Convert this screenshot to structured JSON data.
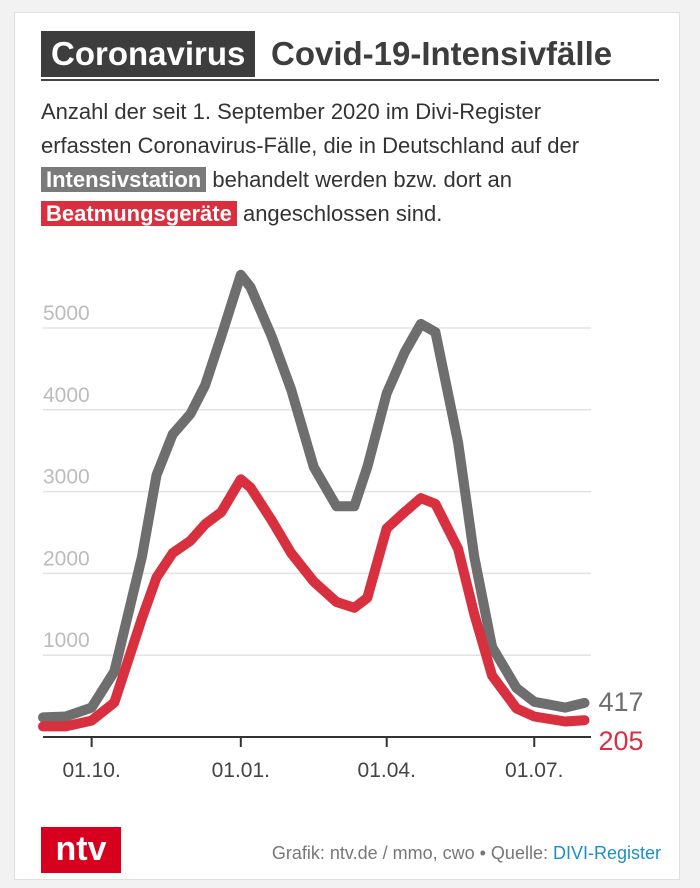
{
  "header": {
    "tag": "Coronavirus",
    "title": "Covid-19-Intensivfälle"
  },
  "subtitle": {
    "line1": "Anzahl der seit 1. September 2020 im Divi-Register",
    "line2": "erfassten Coronavirus-Fälle, die in Deutschland auf der",
    "hl_icu": "Intensivstation",
    "line3_rest": " behandelt werden bzw. dort an",
    "hl_vent": "Beatmungsgeräte",
    "line4_rest": " angeschlossen sind."
  },
  "footer": {
    "logo": "ntv",
    "credit": "Grafik: ntv.de / mmo, cwo • Quelle: ",
    "source": "DIVI-Register"
  },
  "colors": {
    "icu": "#6e6e6e",
    "vent": "#d8303f",
    "grid": "#e3e3e3",
    "tick": "#bcbcbc",
    "axis": "#333333"
  },
  "chart_data": {
    "type": "line",
    "title": "Covid-19-Intensivfälle",
    "x_unit": "date",
    "x_range": [
      "2020-09-01",
      "2021-08-05"
    ],
    "x_ticks": [
      {
        "date": "2020-10-01",
        "label": "01.10."
      },
      {
        "date": "2021-01-01",
        "label": "01.01."
      },
      {
        "date": "2021-04-01",
        "label": "01.04."
      },
      {
        "date": "2021-07-01",
        "label": "01.07."
      }
    ],
    "ylim": [
      0,
      5900
    ],
    "y_ticks": [
      0,
      1000,
      2000,
      3000,
      4000,
      5000
    ],
    "grid": true,
    "series": [
      {
        "name": "Intensivstation",
        "end_label": "417",
        "points": [
          [
            "2020-09-01",
            240
          ],
          [
            "2020-09-15",
            250
          ],
          [
            "2020-10-01",
            360
          ],
          [
            "2020-10-15",
            800
          ],
          [
            "2020-11-01",
            2200
          ],
          [
            "2020-11-10",
            3200
          ],
          [
            "2020-11-20",
            3700
          ],
          [
            "2020-12-01",
            3950
          ],
          [
            "2020-12-10",
            4300
          ],
          [
            "2020-12-20",
            4900
          ],
          [
            "2021-01-01",
            5650
          ],
          [
            "2021-01-07",
            5500
          ],
          [
            "2021-01-20",
            4900
          ],
          [
            "2021-02-01",
            4250
          ],
          [
            "2021-02-15",
            3300
          ],
          [
            "2021-03-01",
            2820
          ],
          [
            "2021-03-12",
            2820
          ],
          [
            "2021-03-20",
            3300
          ],
          [
            "2021-04-01",
            4200
          ],
          [
            "2021-04-12",
            4700
          ],
          [
            "2021-04-22",
            5050
          ],
          [
            "2021-05-01",
            4950
          ],
          [
            "2021-05-15",
            3600
          ],
          [
            "2021-05-25",
            2200
          ],
          [
            "2021-06-05",
            1100
          ],
          [
            "2021-06-20",
            600
          ],
          [
            "2021-07-01",
            430
          ],
          [
            "2021-07-20",
            360
          ],
          [
            "2021-08-01",
            417
          ]
        ]
      },
      {
        "name": "Beatmungsgeräte",
        "end_label": "205",
        "points": [
          [
            "2020-09-01",
            130
          ],
          [
            "2020-09-15",
            130
          ],
          [
            "2020-10-01",
            200
          ],
          [
            "2020-10-15",
            420
          ],
          [
            "2020-11-01",
            1450
          ],
          [
            "2020-11-10",
            1950
          ],
          [
            "2020-11-20",
            2250
          ],
          [
            "2020-12-01",
            2400
          ],
          [
            "2020-12-10",
            2600
          ],
          [
            "2020-12-20",
            2750
          ],
          [
            "2021-01-01",
            3150
          ],
          [
            "2021-01-07",
            3050
          ],
          [
            "2021-01-20",
            2650
          ],
          [
            "2021-02-01",
            2250
          ],
          [
            "2021-02-15",
            1900
          ],
          [
            "2021-03-01",
            1650
          ],
          [
            "2021-03-12",
            1580
          ],
          [
            "2021-03-20",
            1700
          ],
          [
            "2021-04-01",
            2550
          ],
          [
            "2021-04-12",
            2750
          ],
          [
            "2021-04-22",
            2920
          ],
          [
            "2021-05-01",
            2850
          ],
          [
            "2021-05-15",
            2300
          ],
          [
            "2021-05-25",
            1500
          ],
          [
            "2021-06-05",
            750
          ],
          [
            "2021-06-20",
            350
          ],
          [
            "2021-07-01",
            250
          ],
          [
            "2021-07-20",
            190
          ],
          [
            "2021-08-01",
            205
          ]
        ]
      }
    ]
  }
}
